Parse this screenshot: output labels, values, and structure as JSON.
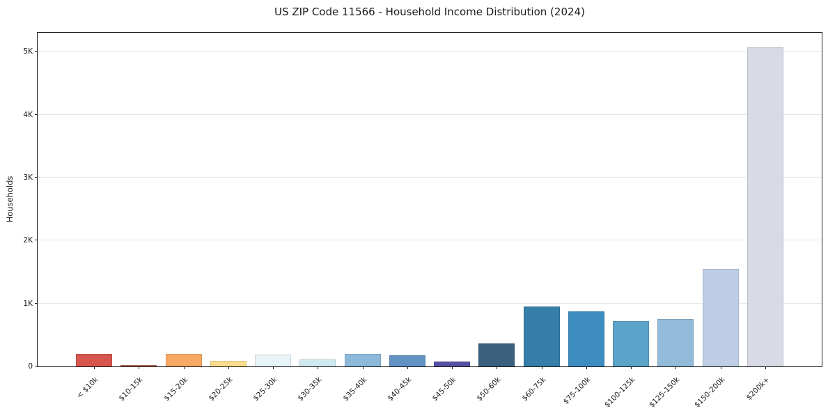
{
  "title": "US ZIP Code 11566 - Household Income Distribution (2024)",
  "chart_data": {
    "type": "bar",
    "title": "US ZIP Code 11566 - Household Income Distribution (2024)",
    "xlabel": "",
    "ylabel": "Households",
    "categories": [
      "< $10k",
      "$10-15k",
      "$15-20k",
      "$20-25k",
      "$25-30k",
      "$30-35k",
      "$35-40k",
      "$40-45k",
      "$45-50k",
      "$50-60k",
      "$60-75k",
      "$75-100k",
      "$100-125k",
      "$125-150k",
      "$150-200k",
      "$200k+"
    ],
    "values": [
      195,
      25,
      195,
      90,
      185,
      110,
      195,
      175,
      80,
      370,
      950,
      875,
      715,
      750,
      1550,
      5070
    ],
    "bar_colors": [
      "#d6564e",
      "#c07061",
      "#f8a963",
      "#fbdd8d",
      "#e7f4f8",
      "#cfe9f0",
      "#8cb8da",
      "#6492c4",
      "#5450a2",
      "#3a607e",
      "#347ea9",
      "#3e8dc1",
      "#5ba3c9",
      "#92bad9",
      "#bdcee6",
      "#d8dae6"
    ],
    "ylim": [
      0,
      5300
    ],
    "yticks": [
      {
        "value": 0,
        "label": "0"
      },
      {
        "value": 1000,
        "label": "1K"
      },
      {
        "value": 2000,
        "label": "2K"
      },
      {
        "value": 3000,
        "label": "3K"
      },
      {
        "value": 4000,
        "label": "4K"
      },
      {
        "value": 5000,
        "label": "5K"
      }
    ],
    "grid": "horizontal",
    "legend": "none",
    "background_color": "#ffffff",
    "axis_color": "#1a1a1a",
    "gridline_color": "#e6e6e6"
  }
}
